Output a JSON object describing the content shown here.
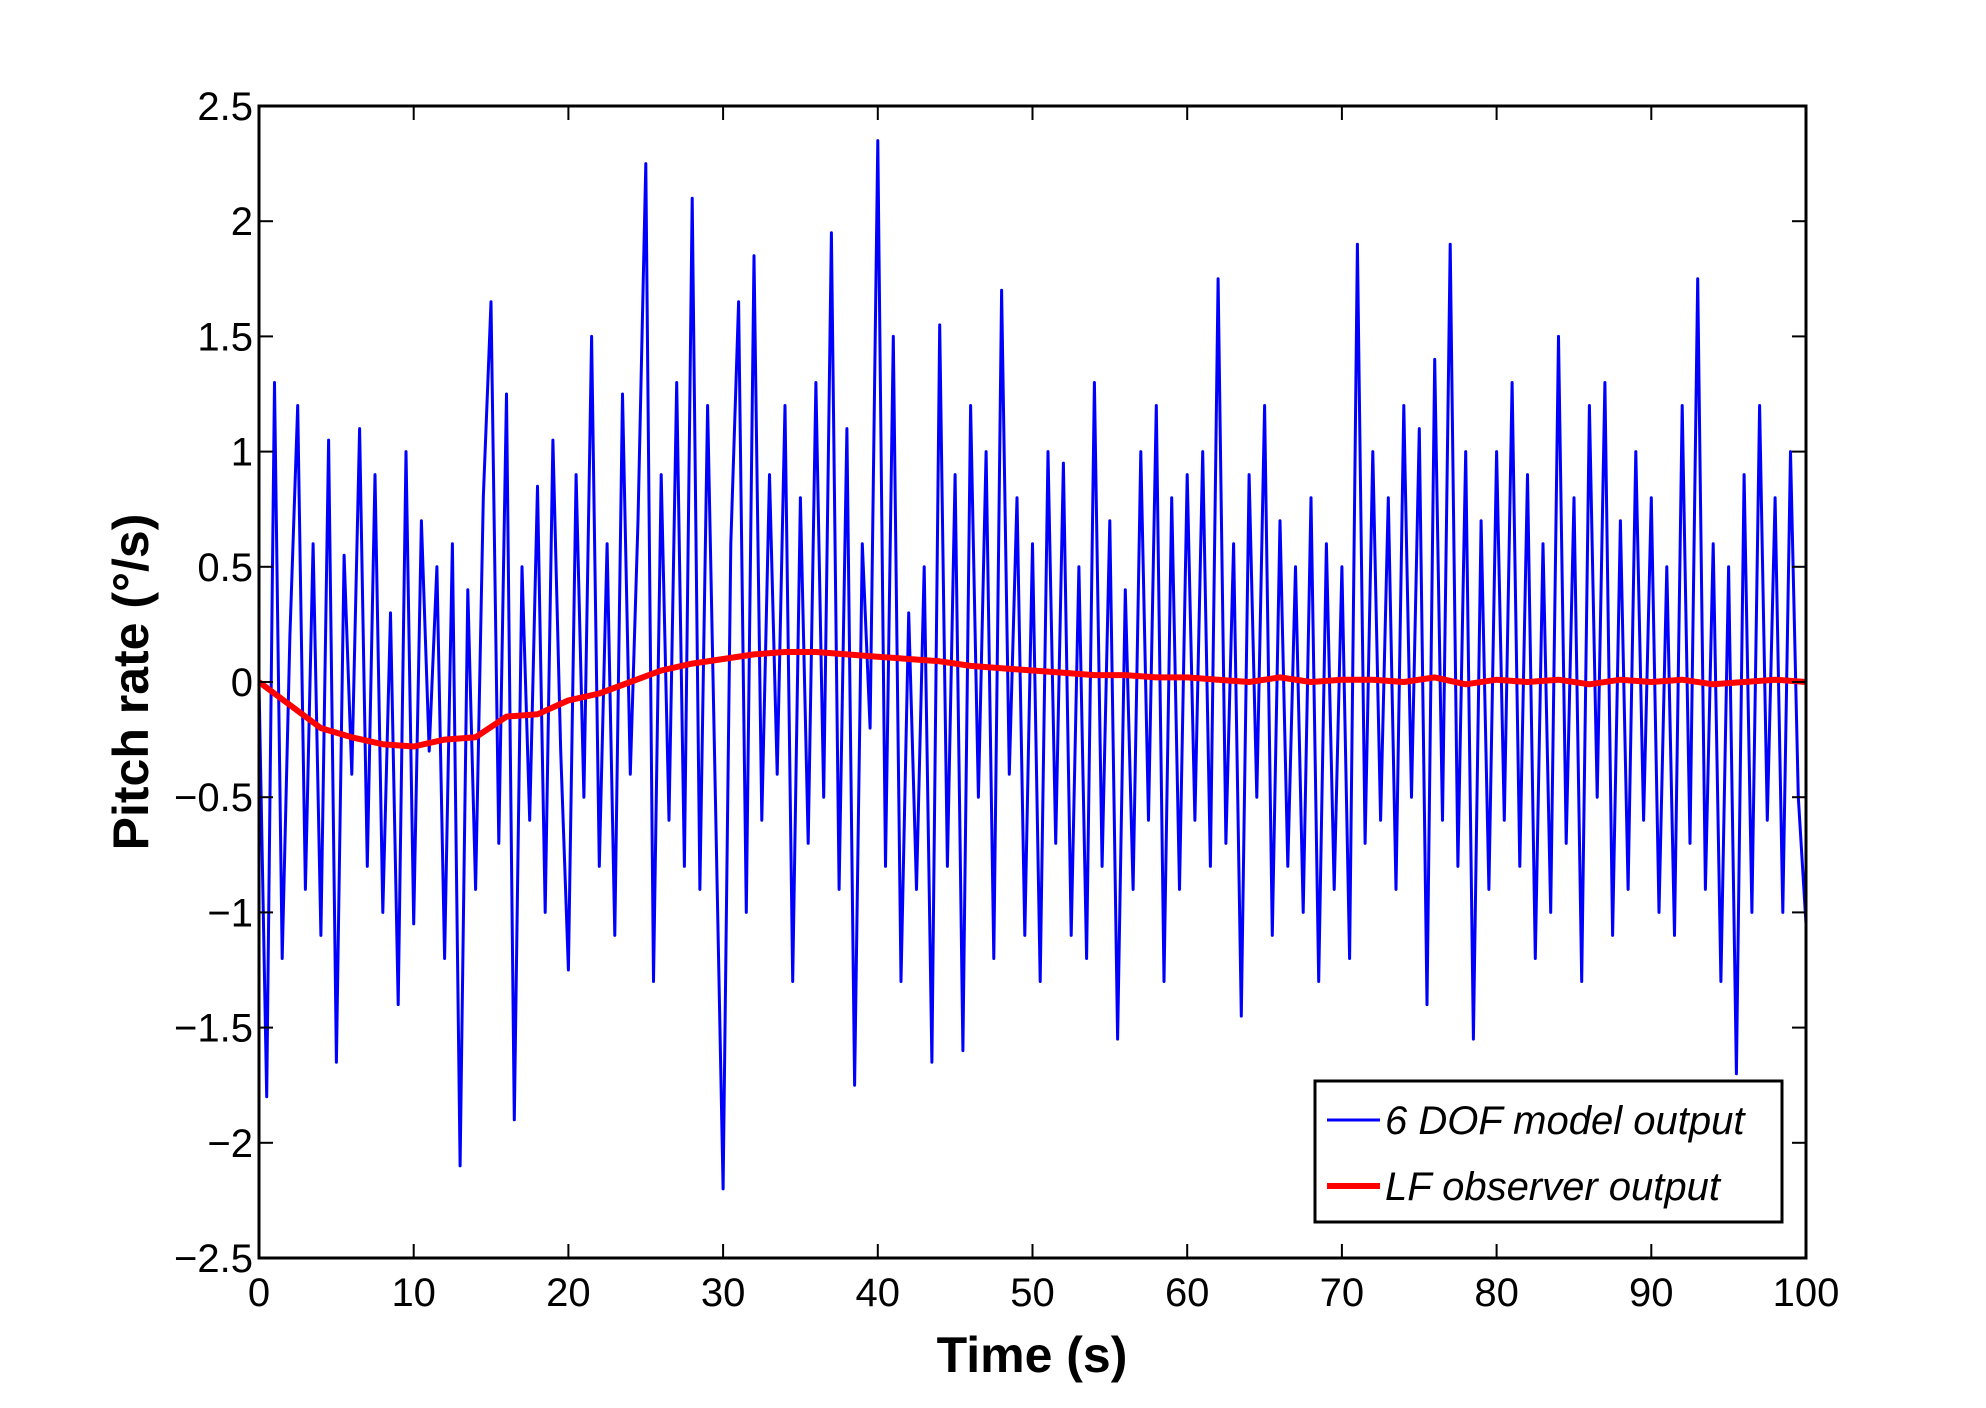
{
  "chart_data": {
    "type": "line",
    "xlabel": "Time (s)",
    "ylabel": "Pitch rate (°/s)",
    "xlim": [
      0,
      100
    ],
    "ylim": [
      -2.5,
      2.5
    ],
    "xticks": [
      "0",
      "10",
      "20",
      "30",
      "40",
      "50",
      "60",
      "70",
      "80",
      "90",
      "100"
    ],
    "yticks": [
      "2.5",
      "2",
      "1.5",
      "1",
      "0.5",
      "0",
      "−0.5",
      "−1",
      "−1.5",
      "−2",
      "−2.5"
    ],
    "grid": false,
    "legend_position": "bottom-right",
    "series": [
      {
        "name": "6 DOF model output",
        "color": "#0000ff",
        "values": [
          0,
          -1.8,
          1.3,
          -1.2,
          0.2,
          1.2,
          -0.9,
          0.6,
          -1.1,
          1.05,
          -1.65,
          0.55,
          -0.4,
          1.1,
          -0.8,
          0.9,
          -1.0,
          0.3,
          -1.4,
          1.0,
          -1.05,
          0.7,
          -0.3,
          0.5,
          -1.2,
          0.6,
          -2.1,
          0.4,
          -0.9,
          0.8,
          1.65,
          -0.7,
          1.25,
          -1.9,
          0.5,
          -0.6,
          0.85,
          -1.0,
          1.05,
          -0.3,
          -1.25,
          0.9,
          -0.5,
          1.5,
          -0.8,
          0.6,
          -1.1,
          1.25,
          -0.4,
          0.7,
          2.25,
          -1.3,
          0.9,
          -0.6,
          1.3,
          -0.8,
          2.1,
          -0.9,
          1.2,
          -0.5,
          -2.2,
          0.6,
          1.65,
          -1.0,
          1.85,
          -0.6,
          0.9,
          -0.4,
          1.2,
          -1.3,
          0.8,
          -0.7,
          1.3,
          -0.5,
          1.95,
          -0.9,
          1.1,
          -1.75,
          0.6,
          -0.2,
          2.35,
          -0.8,
          1.5,
          -1.3,
          0.3,
          -0.9,
          0.5,
          -1.65,
          1.55,
          -0.8,
          0.9,
          -1.6,
          1.2,
          -0.5,
          1.0,
          -1.2,
          1.7,
          -0.4,
          0.8,
          -1.1,
          0.6,
          -1.3,
          1.0,
          -0.7,
          0.95,
          -1.1,
          0.5,
          -1.2,
          1.3,
          -0.8,
          0.7,
          -1.55,
          0.4,
          -0.9,
          1.0,
          -0.6,
          1.2,
          -1.3,
          0.8,
          -0.9,
          0.9,
          -0.6,
          1.0,
          -0.8,
          1.75,
          -0.7,
          0.6,
          -1.45,
          0.9,
          -0.5,
          1.2,
          -1.1,
          0.7,
          -0.8,
          0.5,
          -1.0,
          0.8,
          -1.3,
          0.6,
          -0.9,
          0.5,
          -1.2,
          1.9,
          -0.7,
          1.0,
          -0.6,
          0.8,
          -0.9,
          1.2,
          -0.5,
          1.1,
          -1.4,
          1.4,
          -0.6,
          1.9,
          -0.8,
          1.0,
          -1.55,
          0.7,
          -0.9,
          1.0,
          -0.6,
          1.3,
          -0.8,
          0.9,
          -1.2,
          0.6,
          -1.0,
          1.5,
          -0.7,
          0.8,
          -1.3,
          1.2,
          -0.5,
          1.3,
          -1.1,
          0.7,
          -0.9,
          1.0,
          -0.6,
          0.8,
          -1.0,
          0.5,
          -1.1,
          1.2,
          -0.7,
          1.75,
          -0.9,
          0.6,
          -1.3,
          0.5,
          -1.7,
          0.9,
          -1.0,
          1.2,
          -0.6,
          0.8,
          -1.0,
          1.0,
          -0.5,
          -1.05
        ]
      },
      {
        "name": "LF observer output",
        "color": "#ff0000",
        "values": [
          0,
          -0.1,
          -0.2,
          -0.24,
          -0.27,
          -0.28,
          -0.25,
          -0.24,
          -0.15,
          -0.14,
          -0.08,
          -0.05,
          0,
          0.05,
          0.08,
          0.1,
          0.12,
          0.13,
          0.13,
          0.12,
          0.11,
          0.1,
          0.09,
          0.07,
          0.06,
          0.05,
          0.04,
          0.03,
          0.03,
          0.02,
          0.02,
          0.01,
          0,
          0.02,
          0,
          0.01,
          0.01,
          0,
          0.02,
          -0.01,
          0.01,
          0,
          0.01,
          -0.01,
          0.01,
          0,
          0.01,
          -0.01,
          0,
          0.01,
          0
        ]
      }
    ]
  }
}
